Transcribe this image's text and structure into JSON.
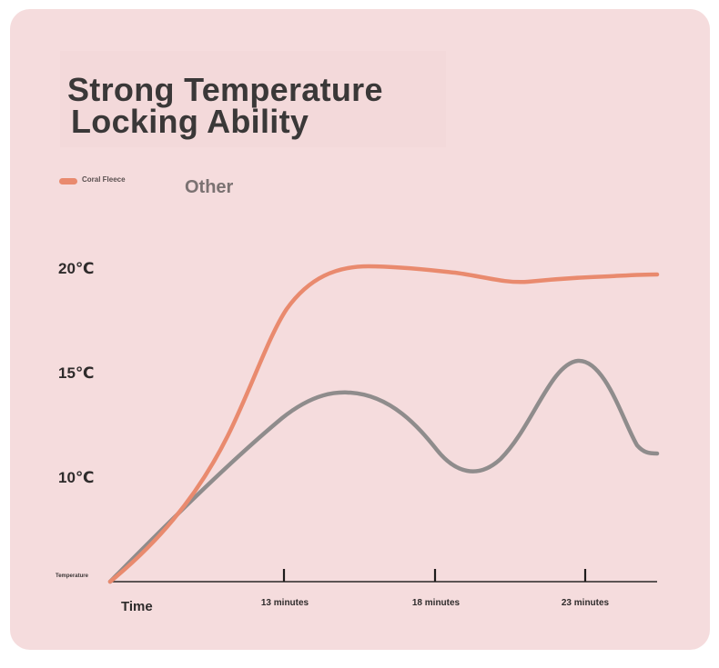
{
  "chart_data": {
    "type": "line",
    "title_lines": [
      "Strong Temperature",
      " Locking Ability"
    ],
    "legend": [
      "Coral Fleece",
      "Other"
    ],
    "ylabel": "Temperature",
    "xlabel": "Time",
    "y_ticks": [
      "10℃",
      "15℃",
      "20℃"
    ],
    "x_ticks": [
      "13 minutes",
      "18 minutes",
      "23 minutes"
    ],
    "colors": {
      "coral_fleece": "#e98a6e",
      "other": "#8f8c8c",
      "background": "#f5dcdd"
    }
  }
}
